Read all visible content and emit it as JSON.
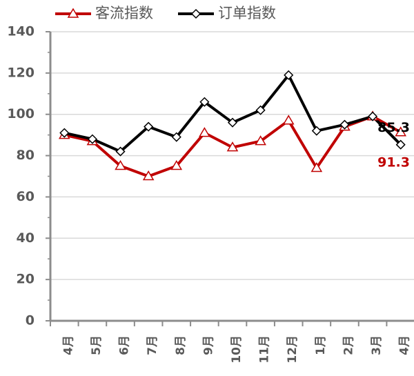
{
  "chart_data": {
    "type": "line",
    "categories": [
      "4月",
      "5月",
      "6月",
      "7月",
      "8月",
      "9月",
      "10月",
      "11月",
      "12月",
      "1月",
      "2月",
      "3月",
      "4月"
    ],
    "series": [
      {
        "name": "客流指数",
        "color": "#c00000",
        "marker": "triangle",
        "values": [
          90,
          87,
          75,
          70,
          75,
          91,
          84,
          87,
          97,
          74,
          94,
          99,
          91.3
        ]
      },
      {
        "name": "订单指数",
        "color": "#000000",
        "marker": "diamond",
        "values": [
          91,
          88,
          82,
          94,
          89,
          106,
          96,
          102,
          119,
          92,
          95,
          99,
          85.3
        ]
      }
    ],
    "ylim": [
      0,
      140
    ],
    "yticks": [
      0,
      20,
      40,
      60,
      80,
      100,
      120,
      140
    ],
    "grid": true,
    "legend": "top-left"
  }
}
